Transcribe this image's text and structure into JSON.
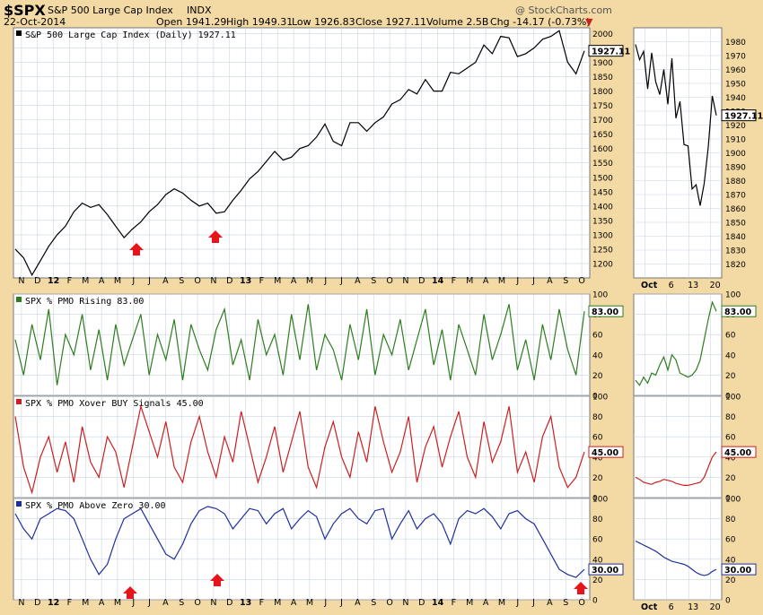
{
  "header": {
    "symbol": "$SPX",
    "name": "S&P 500 Large Cap Index",
    "exchange": "INDX",
    "date": "22-Oct-2014",
    "open": "Open 1941.29",
    "high": "High 1949.31",
    "low": "Low 1926.83",
    "close": "Close 1927.11",
    "volume": "Volume 2.5B",
    "chg": "Chg -14.17 (-0.73%)",
    "watermark": "@ StockCharts.com"
  },
  "colors": {
    "background": "#f3d9a4",
    "price": "#000000",
    "rising": "#2e7d1f",
    "xover": "#cc1f1f",
    "above": "#1f2f9a",
    "arrow": "#e8141b",
    "grid": "#c9d4df"
  },
  "chart_data": [
    {
      "type": "line",
      "panel": "price",
      "title": "S&P 500 Large Cap Index (Daily) 1927.11",
      "last_value_label": "1927.11",
      "ylim": [
        1150,
        2020
      ],
      "y_ticks": [
        "1200",
        "1250",
        "1300",
        "1350",
        "1400",
        "1450",
        "1500",
        "1550",
        "1600",
        "1650",
        "1700",
        "1750",
        "1800",
        "1850",
        "1900",
        "1950",
        "2000"
      ],
      "x_tick_labels": [
        "N",
        "D",
        "12",
        "F",
        "M",
        "A",
        "M",
        "J",
        "J",
        "A",
        "S",
        "O",
        "N",
        "D",
        "13",
        "F",
        "M",
        "A",
        "M",
        "J",
        "J",
        "A",
        "S",
        "O",
        "N",
        "D",
        "14",
        "F",
        "M",
        "A",
        "M",
        "J",
        "J",
        "A",
        "S",
        "O"
      ],
      "series": [
        {
          "name": "S&P 500 Large Cap Index",
          "values": [
            1250,
            1220,
            1160,
            1210,
            1260,
            1300,
            1330,
            1380,
            1410,
            1395,
            1405,
            1370,
            1330,
            1290,
            1320,
            1345,
            1380,
            1405,
            1440,
            1460,
            1445,
            1420,
            1400,
            1410,
            1375,
            1380,
            1420,
            1455,
            1495,
            1520,
            1555,
            1590,
            1560,
            1570,
            1600,
            1610,
            1640,
            1685,
            1625,
            1610,
            1690,
            1690,
            1660,
            1690,
            1710,
            1755,
            1770,
            1805,
            1790,
            1840,
            1800,
            1800,
            1865,
            1860,
            1880,
            1900,
            1960,
            1930,
            1990,
            1985,
            1920,
            1930,
            1950,
            1980,
            1990,
            2010,
            1900,
            1860,
            1940
          ]
        }
      ],
      "annotations": [
        "up-arrow near Jun 2012",
        "up-arrow near Nov 2012"
      ]
    },
    {
      "type": "line",
      "panel": "price-zoom",
      "ylim": [
        1810,
        1990
      ],
      "y_ticks": [
        "1820",
        "1830",
        "1840",
        "1850",
        "1860",
        "1870",
        "1880",
        "1890",
        "1900",
        "1910",
        "1920",
        "1930",
        "1940",
        "1950",
        "1960",
        "1970",
        "1980"
      ],
      "x_tick_labels": [
        "Oct",
        "6",
        "13",
        "20"
      ],
      "last_value_label": "1927.11",
      "series": [
        {
          "name": "S&P 500 Large Cap Index",
          "values": [
            1978,
            1967,
            1973,
            1946,
            1972,
            1951,
            1942,
            1960,
            1935,
            1968,
            1925,
            1937,
            1906,
            1905,
            1874,
            1877,
            1862,
            1878,
            1904,
            1941,
            1927
          ]
        }
      ]
    },
    {
      "type": "line",
      "panel": "pmo-rising",
      "title": "SPX % PMO Rising 83.00",
      "last_value_label": "83.00",
      "ylim": [
        0,
        100
      ],
      "y_ticks": [
        "0",
        "20",
        "40",
        "60",
        "80",
        "100"
      ],
      "series": [
        {
          "name": "SPX % PMO Rising",
          "values": [
            55,
            20,
            70,
            35,
            85,
            10,
            60,
            40,
            80,
            25,
            65,
            15,
            70,
            30,
            55,
            80,
            20,
            60,
            35,
            75,
            15,
            70,
            45,
            25,
            65,
            85,
            30,
            55,
            15,
            75,
            40,
            60,
            20,
            80,
            35,
            90,
            25,
            60,
            45,
            15,
            70,
            35,
            85,
            20,
            60,
            40,
            75,
            25,
            55,
            85,
            30,
            65,
            15,
            70,
            45,
            20,
            80,
            35,
            60,
            90,
            25,
            55,
            15,
            70,
            35,
            85,
            45,
            20,
            83
          ]
        }
      ]
    },
    {
      "type": "line",
      "panel": "pmo-rising-zoom",
      "ylim": [
        0,
        100
      ],
      "y_ticks": [
        "0",
        "20",
        "40",
        "60",
        "80",
        "100"
      ],
      "last_value_label": "83.00",
      "series": [
        {
          "name": "SPX % PMO Rising",
          "values": [
            15,
            10,
            18,
            12,
            22,
            20,
            30,
            38,
            25,
            40,
            35,
            22,
            20,
            18,
            20,
            25,
            35,
            55,
            75,
            92,
            83
          ]
        }
      ]
    },
    {
      "type": "line",
      "panel": "pmo-xover",
      "title": "SPX % PMO Xover BUY Signals 45.00",
      "last_value_label": "45.00",
      "ylim": [
        0,
        100
      ],
      "y_ticks": [
        "0",
        "20",
        "40",
        "60",
        "80",
        "100"
      ],
      "series": [
        {
          "name": "SPX % PMO Xover BUY Signals",
          "values": [
            80,
            30,
            5,
            40,
            60,
            25,
            55,
            15,
            70,
            35,
            20,
            60,
            45,
            10,
            50,
            90,
            65,
            40,
            75,
            30,
            15,
            55,
            80,
            45,
            20,
            60,
            35,
            85,
            50,
            15,
            40,
            70,
            25,
            55,
            85,
            30,
            10,
            50,
            75,
            40,
            20,
            65,
            35,
            90,
            55,
            25,
            45,
            80,
            15,
            50,
            70,
            30,
            60,
            85,
            40,
            20,
            75,
            35,
            55,
            90,
            25,
            45,
            15,
            60,
            80,
            30,
            10,
            20,
            45
          ]
        }
      ]
    },
    {
      "type": "line",
      "panel": "pmo-xover-zoom",
      "ylim": [
        0,
        100
      ],
      "y_ticks": [
        "0",
        "20",
        "40",
        "60",
        "80",
        "100"
      ],
      "last_value_label": "45.00",
      "series": [
        {
          "name": "SPX % PMO Xover BUY Signals",
          "values": [
            20,
            18,
            15,
            14,
            13,
            15,
            16,
            18,
            17,
            16,
            14,
            13,
            12,
            12,
            13,
            14,
            15,
            20,
            30,
            40,
            45
          ]
        }
      ]
    },
    {
      "type": "line",
      "panel": "pmo-above-zero",
      "title": "SPX % PMO Above Zero 30.00",
      "last_value_label": "30.00",
      "ylim": [
        0,
        100
      ],
      "y_ticks": [
        "0",
        "20",
        "40",
        "60",
        "80",
        "100"
      ],
      "series": [
        {
          "name": "SPX % PMO Above Zero",
          "values": [
            85,
            70,
            60,
            80,
            85,
            90,
            88,
            80,
            60,
            40,
            25,
            35,
            60,
            80,
            85,
            90,
            75,
            60,
            45,
            40,
            55,
            75,
            88,
            92,
            90,
            85,
            70,
            80,
            90,
            88,
            75,
            85,
            90,
            70,
            80,
            88,
            82,
            60,
            75,
            85,
            90,
            80,
            75,
            88,
            90,
            60,
            75,
            88,
            70,
            80,
            85,
            75,
            55,
            80,
            88,
            85,
            90,
            82,
            70,
            85,
            88,
            80,
            75,
            60,
            45,
            30,
            25,
            22,
            30
          ]
        }
      ],
      "annotations": [
        "up-arrow near Jun 2012",
        "up-arrow near Nov 2012",
        "up-arrow near Oct 2014"
      ]
    },
    {
      "type": "line",
      "panel": "pmo-above-zero-zoom",
      "ylim": [
        0,
        100
      ],
      "y_ticks": [
        "0",
        "20",
        "40",
        "60",
        "80",
        "100"
      ],
      "x_tick_labels": [
        "Oct",
        "6",
        "13",
        "20"
      ],
      "last_value_label": "30.00",
      "series": [
        {
          "name": "SPX % PMO Above Zero",
          "values": [
            58,
            56,
            54,
            52,
            50,
            48,
            45,
            42,
            40,
            38,
            37,
            36,
            35,
            33,
            30,
            27,
            25,
            24,
            25,
            28,
            30
          ]
        }
      ]
    }
  ]
}
